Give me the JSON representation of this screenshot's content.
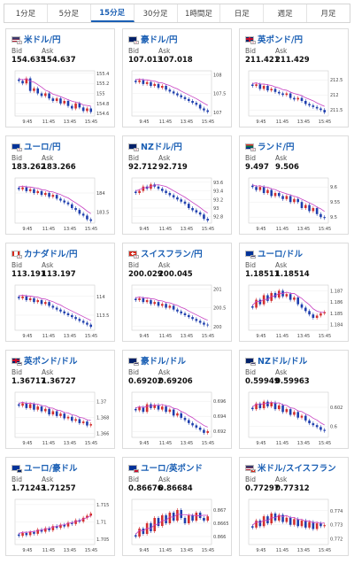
{
  "tabs": [
    {
      "label": "1分足",
      "active": false
    },
    {
      "label": "5分足",
      "active": false
    },
    {
      "label": "15分足",
      "active": true
    },
    {
      "label": "30分足",
      "active": false
    },
    {
      "label": "1時間足",
      "active": false
    },
    {
      "label": "日足",
      "active": false
    },
    {
      "label": "週足",
      "active": false
    },
    {
      "label": "月足",
      "active": false
    }
  ],
  "labels": {
    "bid": "Bid",
    "ask": "Ask"
  },
  "colors": {
    "accent": "#1a5fb4",
    "up": "#d32f2f",
    "down": "#1f3fae",
    "ma": "#c73fc2"
  },
  "cards": [
    {
      "pair": "米ドル/円",
      "bid": "154.635",
      "ask": "154.637",
      "flag": "us",
      "sub": "jp",
      "chart_data": {
        "type": "candlestick",
        "yticks": [
          "155.4",
          "155.2",
          "155",
          "154.8",
          "154.6"
        ],
        "ylim": [
          154.55,
          155.45
        ],
        "xticks": [
          "9:45",
          "11:45",
          "13:45",
          "15:45"
        ],
        "closes": [
          155.25,
          155.2,
          155.3,
          155.05,
          155.1,
          155.0,
          154.95,
          155.0,
          154.9,
          154.85,
          154.9,
          154.8,
          154.85,
          154.75,
          154.7,
          154.8,
          154.72,
          154.65,
          154.7,
          154.63
        ]
      }
    },
    {
      "pair": "豪ドル/円",
      "bid": "107.013",
      "ask": "107.018",
      "flag": "au",
      "sub": "jp",
      "chart_data": {
        "type": "candlestick",
        "yticks": [
          "108",
          "107.5",
          "107"
        ],
        "ylim": [
          106.9,
          108.1
        ],
        "xticks": [
          "9:45",
          "11:45",
          "13:45",
          "15:45"
        ],
        "closes": [
          107.8,
          107.85,
          107.75,
          107.8,
          107.7,
          107.75,
          107.65,
          107.7,
          107.6,
          107.55,
          107.5,
          107.45,
          107.4,
          107.35,
          107.3,
          107.25,
          107.2,
          107.1,
          107.05,
          107.01
        ]
      }
    },
    {
      "pair": "英ポンド/円",
      "bid": "211.421",
      "ask": "211.429",
      "flag": "gb",
      "sub": "jp",
      "chart_data": {
        "type": "candlestick",
        "yticks": [
          "212.5",
          "212",
          "211.5"
        ],
        "ylim": [
          211.3,
          212.8
        ],
        "xticks": [
          "9:45",
          "11:45",
          "13:45",
          "15:45"
        ],
        "closes": [
          212.3,
          212.35,
          212.2,
          212.3,
          212.15,
          212.2,
          212.1,
          212.05,
          212.0,
          212.05,
          211.9,
          211.85,
          211.9,
          211.8,
          211.7,
          211.65,
          211.6,
          211.55,
          211.5,
          211.42
        ]
      }
    },
    {
      "pair": "ユーロ/円",
      "bid": "183.262",
      "ask": "183.266",
      "flag": "eu",
      "sub": "jp",
      "chart_data": {
        "type": "candlestick",
        "yticks": [
          "184",
          "183.5"
        ],
        "ylim": [
          183.2,
          184.4
        ],
        "xticks": [
          "9:45",
          "11:45",
          "13:45",
          "15:45"
        ],
        "closes": [
          184.1,
          184.15,
          184.05,
          184.1,
          184.0,
          184.05,
          183.95,
          184.0,
          183.9,
          183.95,
          183.85,
          183.8,
          183.75,
          183.7,
          183.6,
          183.55,
          183.45,
          183.4,
          183.3,
          183.26
        ]
      }
    },
    {
      "pair": "NZドル/円",
      "bid": "92.712",
      "ask": "92.719",
      "flag": "nz",
      "sub": "jp",
      "chart_data": {
        "type": "candlestick",
        "yticks": [
          "93.6",
          "93.4",
          "93.2",
          "93",
          "92.8"
        ],
        "ylim": [
          92.65,
          93.7
        ],
        "xticks": [
          "9:45",
          "11:45",
          "13:45",
          "15:45"
        ],
        "closes": [
          93.35,
          93.4,
          93.5,
          93.45,
          93.55,
          93.5,
          93.45,
          93.4,
          93.35,
          93.3,
          93.25,
          93.2,
          93.15,
          93.1,
          93.0,
          92.95,
          92.9,
          92.85,
          92.75,
          92.71
        ]
      }
    },
    {
      "pair": "ランド/円",
      "bid": "9.497",
      "ask": "9.506",
      "flag": "za",
      "sub": "jp",
      "chart_data": {
        "type": "candlestick",
        "yticks": [
          "9.6",
          "9.55",
          "9.5"
        ],
        "ylim": [
          9.48,
          9.63
        ],
        "xticks": [
          "9:45",
          "11:45",
          "13:45",
          "15:45"
        ],
        "closes": [
          9.6,
          9.59,
          9.6,
          9.58,
          9.59,
          9.57,
          9.58,
          9.57,
          9.56,
          9.57,
          9.55,
          9.56,
          9.55,
          9.53,
          9.54,
          9.52,
          9.53,
          9.51,
          9.5,
          9.497
        ]
      }
    },
    {
      "pair": "カナダドル/円",
      "bid": "113.191",
      "ask": "113.197",
      "flag": "ca",
      "sub": "jp",
      "chart_data": {
        "type": "candlestick",
        "yticks": [
          "114",
          "113.5"
        ],
        "ylim": [
          113.1,
          114.3
        ],
        "xticks": [
          "9:45",
          "11:45",
          "13:45",
          "15:45"
        ],
        "closes": [
          113.95,
          114.0,
          113.9,
          113.95,
          113.85,
          113.9,
          113.8,
          113.85,
          113.75,
          113.7,
          113.65,
          113.6,
          113.55,
          113.5,
          113.45,
          113.4,
          113.35,
          113.3,
          113.25,
          113.19
        ]
      }
    },
    {
      "pair": "スイスフラン/円",
      "bid": "200.029",
      "ask": "200.045",
      "flag": "ch",
      "sub": "jp",
      "chart_data": {
        "type": "candlestick",
        "yticks": [
          "201",
          "200.5",
          "200"
        ],
        "ylim": [
          199.9,
          201.1
        ],
        "xticks": [
          "9:45",
          "11:45",
          "13:45",
          "15:45"
        ],
        "closes": [
          200.7,
          200.75,
          200.65,
          200.7,
          200.6,
          200.65,
          200.55,
          200.6,
          200.5,
          200.55,
          200.45,
          200.4,
          200.35,
          200.3,
          200.25,
          200.2,
          200.15,
          200.1,
          200.05,
          200.03
        ]
      }
    },
    {
      "pair": "ユーロ/ドル",
      "bid": "1.18511",
      "ask": "1.18514",
      "flag": "eu",
      "sub": "us",
      "chart_data": {
        "type": "candlestick",
        "yticks": [
          "1.187",
          "1.186",
          "1.185",
          "1.184"
        ],
        "ylim": [
          1.1835,
          1.1875
        ],
        "xticks": [
          "9:45",
          "11:45",
          "13:45",
          "15:45"
        ],
        "closes": [
          1.1855,
          1.1862,
          1.1858,
          1.1866,
          1.1861,
          1.1868,
          1.1864,
          1.187,
          1.1865,
          1.1867,
          1.1862,
          1.1864,
          1.1858,
          1.1855,
          1.1852,
          1.1849,
          1.1846,
          1.1848,
          1.185,
          1.18511
        ]
      }
    },
    {
      "pair": "英ポンド/ドル",
      "bid": "1.36717",
      "ask": "1.36727",
      "flag": "gb",
      "sub": "us",
      "chart_data": {
        "type": "candlestick",
        "yticks": [
          "1.37",
          "1.368",
          "1.366"
        ],
        "ylim": [
          1.3655,
          1.3712
        ],
        "xticks": [
          "9:45",
          "11:45",
          "13:45",
          "15:45"
        ],
        "closes": [
          1.3695,
          1.3698,
          1.3692,
          1.3697,
          1.369,
          1.3694,
          1.3688,
          1.3691,
          1.3684,
          1.3688,
          1.3682,
          1.3685,
          1.3679,
          1.3681,
          1.3676,
          1.3678,
          1.3673,
          1.3675,
          1.367,
          1.36717
        ]
      }
    },
    {
      "pair": "豪ドル/ドル",
      "bid": "0.69202",
      "ask": "0.69206",
      "flag": "au",
      "sub": "us",
      "chart_data": {
        "type": "candlestick",
        "yticks": [
          "0.696",
          "0.694",
          "0.692"
        ],
        "ylim": [
          0.6912,
          0.6972
        ],
        "xticks": [
          "9:45",
          "11:45",
          "13:45",
          "15:45"
        ],
        "closes": [
          0.6948,
          0.6952,
          0.6946,
          0.6956,
          0.6951,
          0.6955,
          0.6949,
          0.6953,
          0.6946,
          0.6949,
          0.6941,
          0.6944,
          0.6938,
          0.6935,
          0.6931,
          0.6928,
          0.6925,
          0.6922,
          0.6918,
          0.69202
        ]
      }
    },
    {
      "pair": "NZドル/ドル",
      "bid": "0.59949",
      "ask": "0.59963",
      "flag": "nz",
      "sub": "us",
      "chart_data": {
        "type": "candlestick",
        "yticks": [
          "0.602",
          "0.6"
        ],
        "ylim": [
          0.5988,
          0.6036
        ],
        "xticks": [
          "9:45",
          "11:45",
          "13:45",
          "15:45"
        ],
        "closes": [
          0.6018,
          0.6024,
          0.6019,
          0.6026,
          0.6021,
          0.6025,
          0.6018,
          0.6022,
          0.6015,
          0.6018,
          0.6012,
          0.6015,
          0.6009,
          0.6011,
          0.6006,
          0.6003,
          0.6001,
          0.5999,
          0.5996,
          0.59949
        ]
      }
    },
    {
      "pair": "ユーロ/豪ドル",
      "bid": "1.71243",
      "ask": "1.71257",
      "flag": "eu",
      "sub": "au",
      "chart_data": {
        "type": "candlestick",
        "yticks": [
          "1.715",
          "1.71",
          "1.705"
        ],
        "ylim": [
          1.7035,
          1.7165
        ],
        "xticks": [
          "9:45",
          "11:45",
          "13:45",
          "15:45"
        ],
        "closes": [
          1.706,
          1.7068,
          1.7062,
          1.7071,
          1.7066,
          1.7078,
          1.7072,
          1.7082,
          1.7076,
          1.7088,
          1.7083,
          1.7092,
          1.7087,
          1.7098,
          1.7094,
          1.7105,
          1.7101,
          1.7112,
          1.7118,
          1.71243
        ]
      }
    },
    {
      "pair": "ユーロ/英ポンド",
      "bid": "0.86676",
      "ask": "0.86684",
      "flag": "eu",
      "sub": "gb",
      "chart_data": {
        "type": "candlestick",
        "yticks": [
          "0.867",
          "0.8665",
          "0.866"
        ],
        "ylim": [
          0.8657,
          0.8674
        ],
        "xticks": [
          "9:45",
          "11:45",
          "13:45",
          "15:45"
        ],
        "closes": [
          0.866,
          0.8663,
          0.8661,
          0.8665,
          0.8662,
          0.8667,
          0.8664,
          0.8668,
          0.8665,
          0.8669,
          0.8666,
          0.867,
          0.8667,
          0.8665,
          0.8668,
          0.8666,
          0.8669,
          0.8667,
          0.8666,
          0.86676
        ]
      }
    },
    {
      "pair": "米ドル/スイスフラン",
      "bid": "0.77297",
      "ask": "0.77312",
      "flag": "us",
      "sub": "ch",
      "chart_data": {
        "type": "candlestick",
        "yticks": [
          "0.774",
          "0.773",
          "0.772"
        ],
        "ylim": [
          0.7716,
          0.7748
        ],
        "xticks": [
          "9:45",
          "11:45",
          "13:45",
          "15:45"
        ],
        "closes": [
          0.7728,
          0.7733,
          0.7729,
          0.7736,
          0.7731,
          0.7738,
          0.7733,
          0.7737,
          0.7732,
          0.7735,
          0.773,
          0.7734,
          0.7729,
          0.7733,
          0.7728,
          0.7732,
          0.7727,
          0.7731,
          0.7729,
          0.77297
        ]
      }
    }
  ]
}
